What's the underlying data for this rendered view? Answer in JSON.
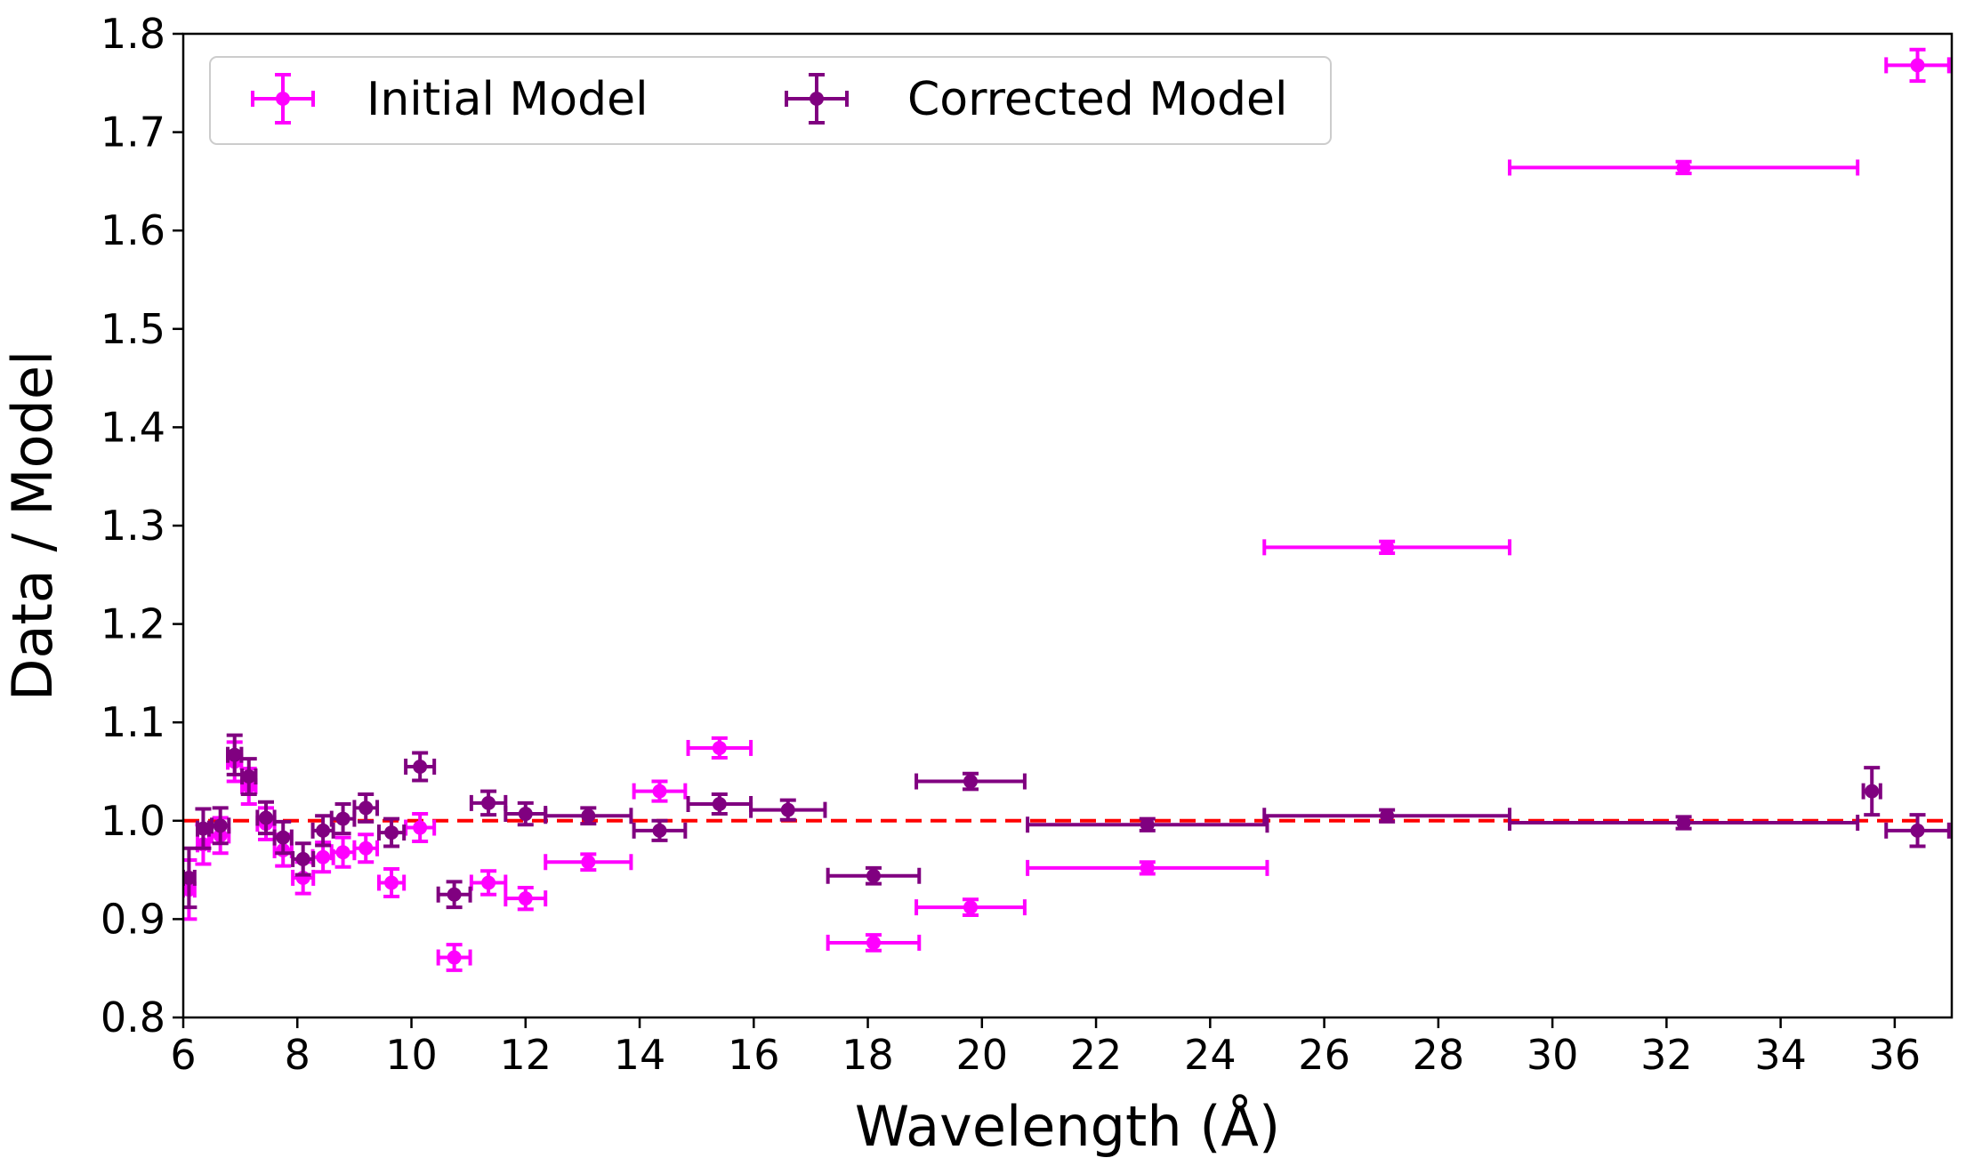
{
  "chart_data": {
    "type": "scatter",
    "title": "",
    "xlabel": "Wavelength (Å)",
    "ylabel": "Data / Model",
    "xlim": [
      6,
      37
    ],
    "ylim": [
      0.8,
      1.8
    ],
    "xticks": [
      "6",
      "8",
      "10",
      "12",
      "14",
      "16",
      "18",
      "20",
      "22",
      "24",
      "26",
      "28",
      "30",
      "32",
      "34",
      "36"
    ],
    "yticks": [
      "0.8",
      "0.9",
      "1.0",
      "1.1",
      "1.2",
      "1.3",
      "1.4",
      "1.5",
      "1.6",
      "1.7",
      "1.8"
    ],
    "grid": false,
    "legend_position": "top-left",
    "reference_line": {
      "y": 1.0,
      "style": "dashed",
      "color": "#ff0000"
    },
    "series": [
      {
        "name": "Initial Model",
        "color": "#ff00ff",
        "points": [
          {
            "x": 6.1,
            "y": 0.93,
            "xerr": 0.1,
            "yerr": 0.03
          },
          {
            "x": 6.35,
            "y": 0.976,
            "xerr": 0.1,
            "yerr": 0.02
          },
          {
            "x": 6.65,
            "y": 0.985,
            "xerr": 0.15,
            "yerr": 0.018
          },
          {
            "x": 6.9,
            "y": 1.06,
            "xerr": 0.12,
            "yerr": 0.02
          },
          {
            "x": 7.15,
            "y": 1.035,
            "xerr": 0.12,
            "yerr": 0.018
          },
          {
            "x": 7.45,
            "y": 0.997,
            "xerr": 0.15,
            "yerr": 0.016
          },
          {
            "x": 7.75,
            "y": 0.97,
            "xerr": 0.15,
            "yerr": 0.016
          },
          {
            "x": 8.1,
            "y": 0.942,
            "xerr": 0.18,
            "yerr": 0.016
          },
          {
            "x": 8.45,
            "y": 0.963,
            "xerr": 0.18,
            "yerr": 0.015
          },
          {
            "x": 8.8,
            "y": 0.968,
            "xerr": 0.2,
            "yerr": 0.015
          },
          {
            "x": 9.2,
            "y": 0.972,
            "xerr": 0.2,
            "yerr": 0.014
          },
          {
            "x": 9.65,
            "y": 0.937,
            "xerr": 0.22,
            "yerr": 0.014
          },
          {
            "x": 10.15,
            "y": 0.993,
            "xerr": 0.25,
            "yerr": 0.014
          },
          {
            "x": 10.75,
            "y": 0.861,
            "xerr": 0.28,
            "yerr": 0.013
          },
          {
            "x": 11.35,
            "y": 0.937,
            "xerr": 0.3,
            "yerr": 0.012
          },
          {
            "x": 12.0,
            "y": 0.921,
            "xerr": 0.35,
            "yerr": 0.011
          },
          {
            "x": 13.1,
            "y": 0.958,
            "xerr": 0.75,
            "yerr": 0.008
          },
          {
            "x": 14.35,
            "y": 1.03,
            "xerr": 0.45,
            "yerr": 0.01
          },
          {
            "x": 15.4,
            "y": 1.074,
            "xerr": 0.55,
            "yerr": 0.01
          },
          {
            "x": 18.1,
            "y": 0.876,
            "xerr": 0.8,
            "yerr": 0.008
          },
          {
            "x": 19.8,
            "y": 0.912,
            "xerr": 0.95,
            "yerr": 0.008
          },
          {
            "x": 22.9,
            "y": 0.952,
            "xerr": 2.1,
            "yerr": 0.006
          },
          {
            "x": 27.1,
            "y": 1.278,
            "xerr": 2.15,
            "yerr": 0.006
          },
          {
            "x": 32.3,
            "y": 1.664,
            "xerr": 3.05,
            "yerr": 0.006
          },
          {
            "x": 36.4,
            "y": 1.768,
            "xerr": 0.55,
            "yerr": 0.016
          }
        ]
      },
      {
        "name": "Corrected Model",
        "color": "#800080",
        "points": [
          {
            "x": 6.1,
            "y": 0.942,
            "xerr": 0.1,
            "yerr": 0.03
          },
          {
            "x": 6.35,
            "y": 0.992,
            "xerr": 0.1,
            "yerr": 0.02
          },
          {
            "x": 6.65,
            "y": 0.995,
            "xerr": 0.15,
            "yerr": 0.018
          },
          {
            "x": 6.9,
            "y": 1.067,
            "xerr": 0.12,
            "yerr": 0.02
          },
          {
            "x": 7.15,
            "y": 1.045,
            "xerr": 0.12,
            "yerr": 0.018
          },
          {
            "x": 7.45,
            "y": 1.003,
            "xerr": 0.15,
            "yerr": 0.016
          },
          {
            "x": 7.75,
            "y": 0.983,
            "xerr": 0.15,
            "yerr": 0.016
          },
          {
            "x": 8.1,
            "y": 0.961,
            "xerr": 0.18,
            "yerr": 0.016
          },
          {
            "x": 8.45,
            "y": 0.99,
            "xerr": 0.18,
            "yerr": 0.015
          },
          {
            "x": 8.8,
            "y": 1.002,
            "xerr": 0.2,
            "yerr": 0.015
          },
          {
            "x": 9.2,
            "y": 1.013,
            "xerr": 0.2,
            "yerr": 0.014
          },
          {
            "x": 9.65,
            "y": 0.988,
            "xerr": 0.22,
            "yerr": 0.014
          },
          {
            "x": 10.15,
            "y": 1.055,
            "xerr": 0.25,
            "yerr": 0.014
          },
          {
            "x": 10.75,
            "y": 0.925,
            "xerr": 0.28,
            "yerr": 0.013
          },
          {
            "x": 11.35,
            "y": 1.018,
            "xerr": 0.3,
            "yerr": 0.012
          },
          {
            "x": 12.0,
            "y": 1.007,
            "xerr": 0.35,
            "yerr": 0.011
          },
          {
            "x": 13.1,
            "y": 1.005,
            "xerr": 0.75,
            "yerr": 0.008
          },
          {
            "x": 14.35,
            "y": 0.99,
            "xerr": 0.45,
            "yerr": 0.01
          },
          {
            "x": 15.4,
            "y": 1.017,
            "xerr": 0.55,
            "yerr": 0.01
          },
          {
            "x": 16.6,
            "y": 1.011,
            "xerr": 0.65,
            "yerr": 0.01
          },
          {
            "x": 18.1,
            "y": 0.944,
            "xerr": 0.8,
            "yerr": 0.008
          },
          {
            "x": 19.8,
            "y": 1.04,
            "xerr": 0.95,
            "yerr": 0.008
          },
          {
            "x": 22.9,
            "y": 0.996,
            "xerr": 2.1,
            "yerr": 0.006
          },
          {
            "x": 27.1,
            "y": 1.005,
            "xerr": 2.15,
            "yerr": 0.006
          },
          {
            "x": 32.3,
            "y": 0.998,
            "xerr": 3.05,
            "yerr": 0.006
          },
          {
            "x": 35.6,
            "y": 1.03,
            "xerr": 0.15,
            "yerr": 0.024
          },
          {
            "x": 36.4,
            "y": 0.99,
            "xerr": 0.55,
            "yerr": 0.016
          }
        ]
      }
    ]
  }
}
